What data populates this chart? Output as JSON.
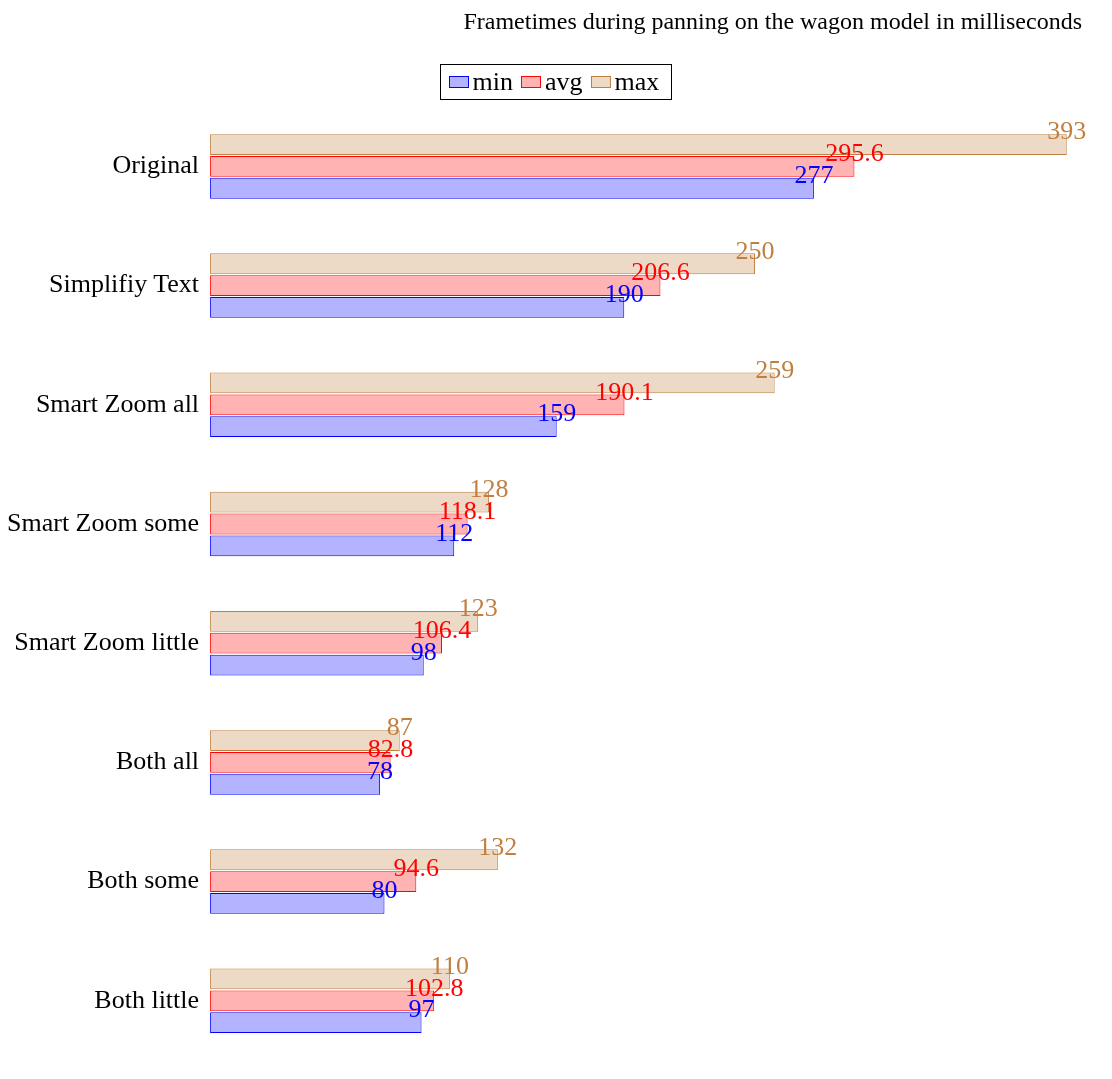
{
  "chart_data": {
    "type": "bar",
    "orientation": "horizontal",
    "title": "Frametimes during panning on the wagon model in milliseconds",
    "categories": [
      "Original",
      "Simplifiy Text",
      "Smart Zoom all",
      "Smart Zoom some",
      "Smart Zoom little",
      "Both all",
      "Both some",
      "Both little"
    ],
    "series": [
      {
        "name": "min",
        "color": "#b3b3ff",
        "values": [
          277,
          190,
          159,
          112,
          98,
          78,
          80,
          97
        ]
      },
      {
        "name": "avg",
        "color": "#ffb3b3",
        "values": [
          295.6,
          206.6,
          190.1,
          118.1,
          106.4,
          82.8,
          94.6,
          102.8
        ]
      },
      {
        "name": "max",
        "color": "#ecd9c6",
        "values": [
          393,
          250,
          259,
          128,
          123,
          87,
          132,
          110
        ]
      }
    ],
    "data_labels": true,
    "legend": "top"
  }
}
